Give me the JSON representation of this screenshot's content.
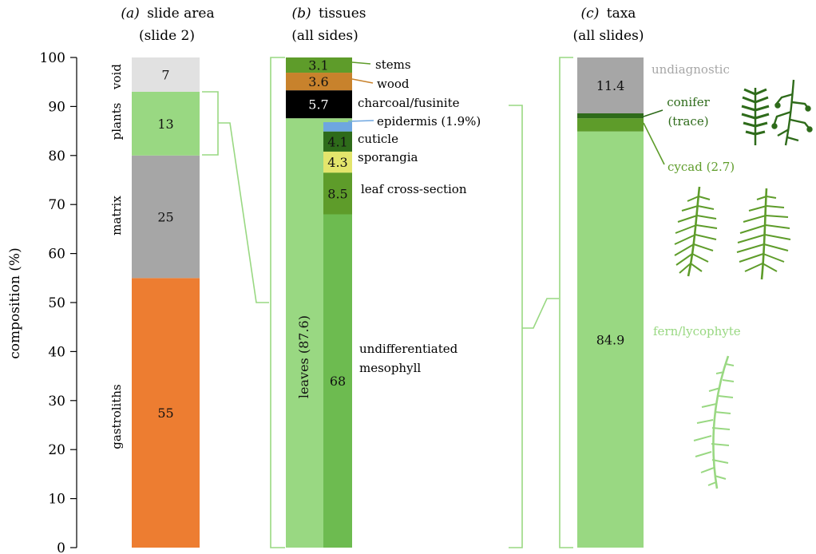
{
  "chart_data": {
    "type": "stacked-bar",
    "y_axis": {
      "label": "composition (%)",
      "ylim": [
        0,
        100
      ],
      "ticks": [
        "0",
        "10",
        "20",
        "30",
        "40",
        "50",
        "60",
        "70",
        "80",
        "90",
        "100"
      ]
    },
    "panels": [
      {
        "id": "a",
        "title_letter": "(a)",
        "title": "slide area",
        "subtitle": "(slide 2)",
        "segments": [
          {
            "name": "gastroliths",
            "value": 55,
            "label": "55",
            "color": "#ed7d31"
          },
          {
            "name": "matrix",
            "value": 25,
            "label": "25",
            "color": "#a6a6a6"
          },
          {
            "name": "plants",
            "value": 13,
            "label": "13",
            "color": "#99d882"
          },
          {
            "name": "void",
            "value": 7,
            "label": "7",
            "color": "#e1e1e1"
          }
        ]
      },
      {
        "id": "b",
        "title_letter": "(b)",
        "title": "tissues",
        "subtitle": "(all sides)",
        "main_segments": [
          {
            "name": "leaves",
            "value": 87.6,
            "rotated_label": "leaves (87.6)",
            "color": "#99d882"
          },
          {
            "name": "charcoal/fusinite",
            "value": 5.7,
            "label": "5.7",
            "color": "#000000"
          },
          {
            "name": "wood",
            "value": 3.6,
            "label": "3.6",
            "color": "#c8822c"
          },
          {
            "name": "stems",
            "value": 3.1,
            "label": "3.1",
            "color": "#5e9c2a"
          }
        ],
        "leaf_breakdown": [
          {
            "name": "undifferentiated mesophyll",
            "value": 68,
            "label": "68",
            "color": "#6dbb50"
          },
          {
            "name": "leaf cross-section",
            "value": 8.5,
            "label": "8.5",
            "color": "#5e9c2a"
          },
          {
            "name": "sporangia",
            "value": 4.3,
            "label": "4.3",
            "color": "#e3e56c"
          },
          {
            "name": "cuticle",
            "value": 4.1,
            "label": "4.1",
            "color": "#2e6b1a"
          },
          {
            "name": "epidermis",
            "value": 1.9,
            "label": "",
            "color": "#6ea6e0"
          }
        ],
        "annotations": {
          "stems": "stems",
          "wood": "wood",
          "charcoal": "charcoal/fusinite",
          "epidermis": "epidermis (1.9%)",
          "cuticle": "cuticle",
          "sporangia": "sporangia",
          "leaf_cross_section": "leaf cross-section",
          "mesophyll_line1": "undifferentiated",
          "mesophyll_line2": "mesophyll"
        }
      },
      {
        "id": "c",
        "title_letter": "(c)",
        "title": "taxa",
        "subtitle": "(all slides)",
        "segments": [
          {
            "name": "fern/lycophyte",
            "value": 84.9,
            "label": "84.9",
            "color": "#99d882"
          },
          {
            "name": "cycad",
            "value": 2.7,
            "label": "",
            "color": "#5e9c2a"
          },
          {
            "name": "conifer",
            "value": 1.0,
            "label": "",
            "color": "#2e6b1a"
          },
          {
            "name": "undiagnostic",
            "value": 11.4,
            "label": "11.4",
            "color": "#a6a6a6"
          }
        ],
        "annotations": {
          "undiagnostic": "undiagnostic",
          "conifer_line1": "conifer",
          "conifer_line2": "(trace)",
          "cycad": "cycad (2.7)",
          "fern": "fern/lycophyte"
        }
      }
    ],
    "icons": [
      "conifer-branch-icon",
      "conifer-sprig-icon",
      "cycad-frond-icon",
      "cycad-frond-2-icon",
      "fern-frond-icon"
    ],
    "colors": {
      "bracket": "#99d882",
      "axis": "#000000",
      "undiagnostic_text": "#a6a6a6",
      "conifer_text": "#2e6b1a",
      "cycad_text": "#5e9c2a",
      "fern_text": "#99d882"
    }
  }
}
